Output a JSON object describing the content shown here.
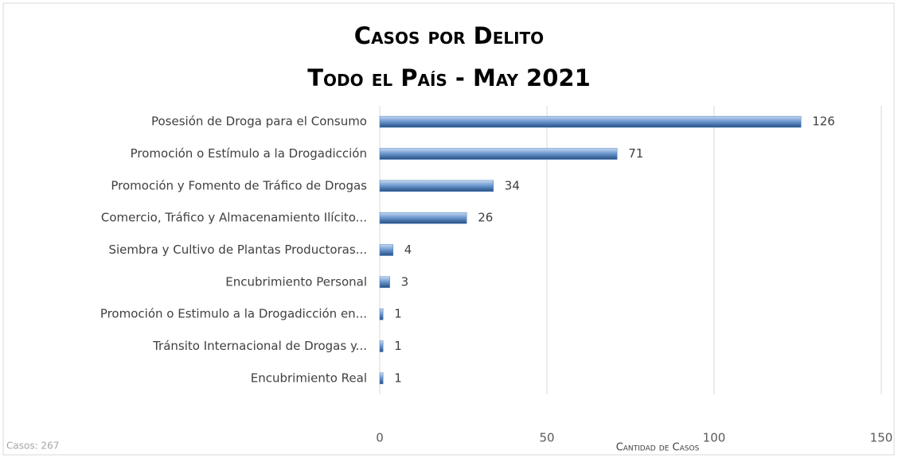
{
  "chart_data": {
    "type": "bar",
    "orientation": "horizontal",
    "title": "Casos por Delito",
    "subtitle": "Todo el País - May 2021",
    "x_label": "Cantidad de Casos",
    "annotation": "Casos: 267",
    "categories": [
      "Posesión de Droga para el Consumo",
      "Promoción o Estímulo a la Drogadicción",
      "Promoción y Fomento de Tráfico de Drogas",
      "Comercio, Tráfico y Almacenamiento Ilícito...",
      "Siembra y Cultivo de Plantas Productoras...",
      "Encubrimiento Personal",
      "Promoción o Estimulo a la Drogadicción en...",
      "Tránsito Internacional de Drogas y...",
      "Encubrimiento Real"
    ],
    "values": [
      126,
      71,
      34,
      26,
      4,
      3,
      1,
      1,
      1
    ],
    "color": "#4f81bd",
    "xlim": [
      0,
      150
    ],
    "xticks": [
      0,
      50,
      100,
      150
    ],
    "grid": true
  }
}
